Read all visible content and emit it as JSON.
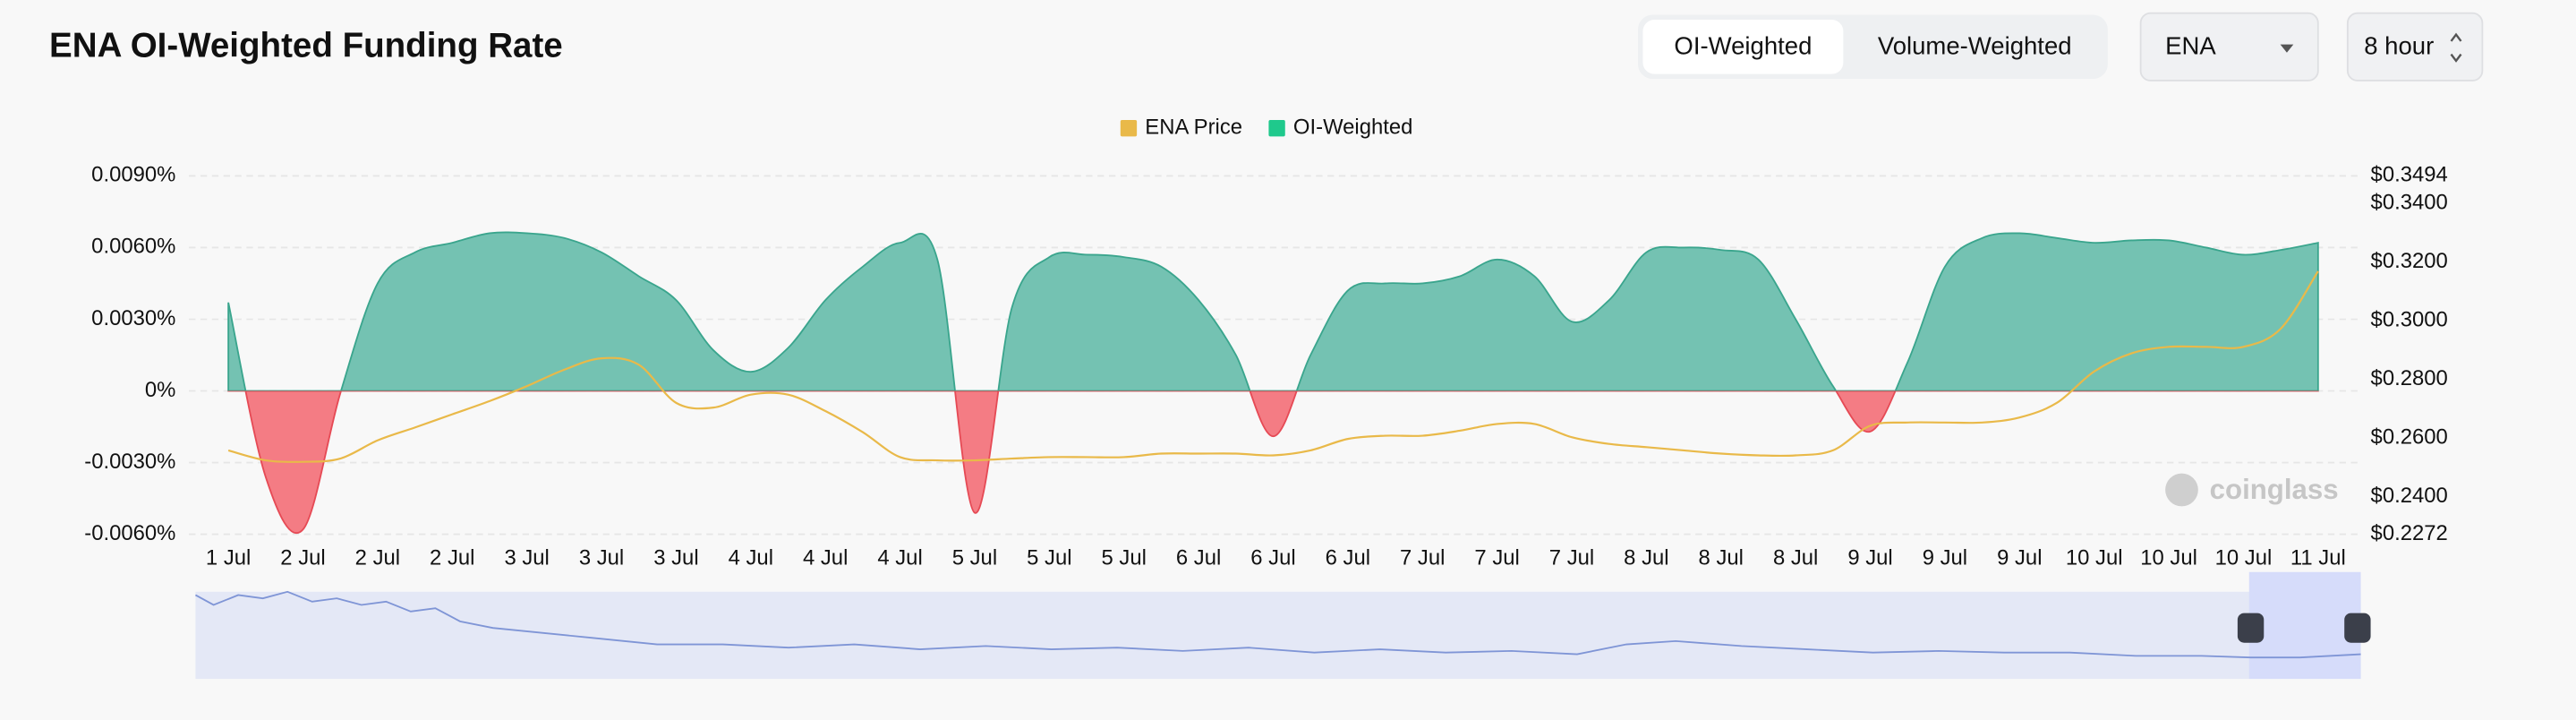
{
  "chart_data": {
    "type": "line",
    "title": "ENA OI-Weighted Funding Rate",
    "controls": {
      "tabs": [
        "OI-Weighted",
        "Volume-Weighted"
      ],
      "symbol": "ENA",
      "interval": "8 hour"
    },
    "watermark": "coinglass",
    "categories": [
      "1 Jul",
      null,
      "2 Jul",
      null,
      "2 Jul",
      null,
      "2 Jul",
      null,
      "3 Jul",
      null,
      "3 Jul",
      null,
      "3 Jul",
      null,
      "4 Jul",
      null,
      "4 Jul",
      null,
      "4 Jul",
      null,
      "5 Jul",
      null,
      "5 Jul",
      null,
      "5 Jul",
      null,
      "6 Jul",
      null,
      "6 Jul",
      null,
      "6 Jul",
      null,
      "7 Jul",
      null,
      "7 Jul",
      null,
      "7 Jul",
      null,
      "8 Jul",
      null,
      "8 Jul",
      null,
      "8 Jul",
      null,
      "9 Jul",
      null,
      "9 Jul",
      null,
      "9 Jul",
      null,
      "10 Jul",
      null,
      "10 Jul",
      null,
      "10 Jul",
      null,
      "11 Jul"
    ],
    "series": [
      {
        "name": "ENA Price",
        "color": "#e9b949",
        "axis": "y2",
        "values": [
          0.2558,
          0.2524,
          0.2519,
          0.253,
          0.2592,
          0.2636,
          0.2681,
          0.2726,
          0.2777,
          0.2833,
          0.2872,
          0.285,
          0.272,
          0.2704,
          0.2748,
          0.2748,
          0.2692,
          0.262,
          0.2535,
          0.2524,
          0.2524,
          0.253,
          0.2535,
          0.2535,
          0.2535,
          0.2547,
          0.2547,
          0.2547,
          0.2541,
          0.2558,
          0.2597,
          0.2608,
          0.2608,
          0.2625,
          0.2648,
          0.2648,
          0.2603,
          0.258,
          0.2569,
          0.2558,
          0.2547,
          0.2541,
          0.2541,
          0.2558,
          0.2642,
          0.2653,
          0.2653,
          0.2653,
          0.267,
          0.272,
          0.2827,
          0.2889,
          0.2911,
          0.2911,
          0.2911,
          0.2973,
          0.3169
        ]
      },
      {
        "name": "OI-Weighted",
        "color": "#1fc98c",
        "positive_color": "#74c2b2",
        "negative_color": "#f47c84",
        "positive_stroke": "#3aa58d",
        "negative_stroke": "#e64a55",
        "values": [
          0.0037,
          -0.0036,
          -0.0058,
          -0.0001,
          0.0045,
          0.0058,
          0.0062,
          0.0066,
          0.0066,
          0.0064,
          0.0058,
          0.0048,
          0.0038,
          0.0017,
          0.0008,
          0.0018,
          0.0038,
          0.0052,
          0.0062,
          0.0055,
          -0.0051,
          0.0035,
          0.0056,
          0.0057,
          0.0056,
          0.0052,
          0.0038,
          0.0015,
          -0.0019,
          0.0015,
          0.0042,
          0.0045,
          0.0045,
          0.0048,
          0.0055,
          0.0048,
          0.0029,
          0.0038,
          0.0058,
          0.006,
          0.0059,
          0.0055,
          0.003,
          0.0002,
          -0.0017,
          0.0012,
          0.0052,
          0.0064,
          0.0066,
          0.0064,
          0.0062,
          0.0063,
          0.0063,
          0.006,
          0.0057,
          0.0059,
          0.0062
        ]
      }
    ],
    "ylim": [
      -0.006,
      0.009
    ],
    "yticks": [
      {
        "value": -0.006,
        "label": "-0.0060%"
      },
      {
        "value": -0.003,
        "label": "-0.0030%"
      },
      {
        "value": 0,
        "label": "0%"
      },
      {
        "value": 0.003,
        "label": "0.0030%"
      },
      {
        "value": 0.006,
        "label": "0.0060%"
      },
      {
        "value": 0.009,
        "label": "0.0090%"
      }
    ],
    "y2lim": [
      0.2272,
      0.3494
    ],
    "y2ticks": [
      {
        "value": 0.2272,
        "label": "$0.2272"
      },
      {
        "value": 0.24,
        "label": "$0.2400"
      },
      {
        "value": 0.26,
        "label": "$0.2600"
      },
      {
        "value": 0.28,
        "label": "$0.2800"
      },
      {
        "value": 0.3,
        "label": "$0.3000"
      },
      {
        "value": 0.32,
        "label": "$0.3200"
      },
      {
        "value": 0.34,
        "label": "$0.3400"
      },
      {
        "value": 0.3494,
        "label": "$0.3494"
      }
    ],
    "grid": true,
    "legend": "top"
  }
}
